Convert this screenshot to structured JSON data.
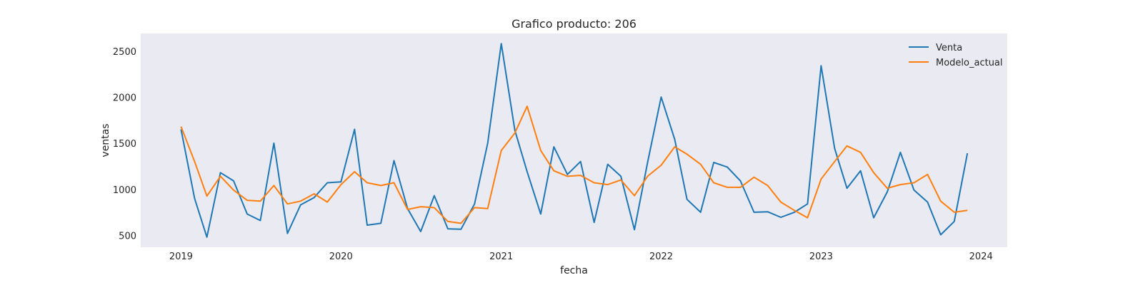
{
  "chart_data": {
    "type": "line",
    "title": "Grafico producto: 206",
    "xlabel": "fecha",
    "ylabel": "ventas",
    "xlim": [
      "2018-10-01",
      "2024-03-01"
    ],
    "ylim": [
      380,
      2700
    ],
    "x_ticks": [
      {
        "date": "2019-01-01",
        "label": "2019"
      },
      {
        "date": "2020-01-01",
        "label": "2020"
      },
      {
        "date": "2021-01-01",
        "label": "2021"
      },
      {
        "date": "2022-01-01",
        "label": "2022"
      },
      {
        "date": "2023-01-01",
        "label": "2023"
      },
      {
        "date": "2024-01-01",
        "label": "2024"
      }
    ],
    "y_ticks": [
      500,
      1000,
      1500,
      2000,
      2500
    ],
    "grid": false,
    "legend_position": "top-right",
    "background_color": "#eaeaf2",
    "x": [
      "2019-01",
      "2019-02",
      "2019-03",
      "2019-04",
      "2019-05",
      "2019-06",
      "2019-07",
      "2019-08",
      "2019-09",
      "2019-10",
      "2019-11",
      "2019-12",
      "2020-01",
      "2020-02",
      "2020-03",
      "2020-04",
      "2020-05",
      "2020-06",
      "2020-07",
      "2020-08",
      "2020-09",
      "2020-10",
      "2020-11",
      "2020-12",
      "2021-01",
      "2021-02",
      "2021-03",
      "2021-04",
      "2021-05",
      "2021-06",
      "2021-07",
      "2021-08",
      "2021-09",
      "2021-10",
      "2021-11",
      "2021-12",
      "2022-01",
      "2022-02",
      "2022-03",
      "2022-04",
      "2022-05",
      "2022-06",
      "2022-07",
      "2022-08",
      "2022-09",
      "2022-10",
      "2022-11",
      "2022-12",
      "2023-01",
      "2023-02",
      "2023-03",
      "2023-04",
      "2023-05",
      "2023-06",
      "2023-07",
      "2023-08",
      "2023-09",
      "2023-10",
      "2023-11",
      "2023-12"
    ],
    "series": [
      {
        "name": "Venta",
        "color": "#1f77b4",
        "values": [
          1660,
          910,
          490,
          1190,
          1100,
          740,
          670,
          1510,
          530,
          840,
          920,
          1080,
          1090,
          1660,
          620,
          640,
          1320,
          800,
          550,
          940,
          580,
          575,
          850,
          1510,
          2590,
          1650,
          1200,
          740,
          1470,
          1170,
          1310,
          650,
          1280,
          1150,
          570,
          1300,
          2010,
          1550,
          900,
          760,
          1300,
          1250,
          1100,
          760,
          765,
          705,
          760,
          850,
          2350,
          1450,
          1020,
          1210,
          700,
          980,
          1410,
          1000,
          870,
          515,
          660,
          1400
        ]
      },
      {
        "name": "Modelo_actual",
        "color": "#ff7f0e",
        "values": [
          1690,
          1310,
          935,
          1150,
          1000,
          890,
          880,
          1050,
          850,
          880,
          960,
          870,
          1060,
          1200,
          1080,
          1050,
          1080,
          790,
          820,
          810,
          660,
          640,
          810,
          800,
          1430,
          1620,
          1910,
          1430,
          1210,
          1150,
          1160,
          1080,
          1060,
          1110,
          940,
          1150,
          1270,
          1470,
          1390,
          1280,
          1080,
          1030,
          1030,
          1140,
          1050,
          870,
          780,
          700,
          1120,
          1310,
          1480,
          1410,
          1190,
          1020,
          1060,
          1080,
          1170,
          880,
          760,
          780
        ]
      }
    ]
  }
}
